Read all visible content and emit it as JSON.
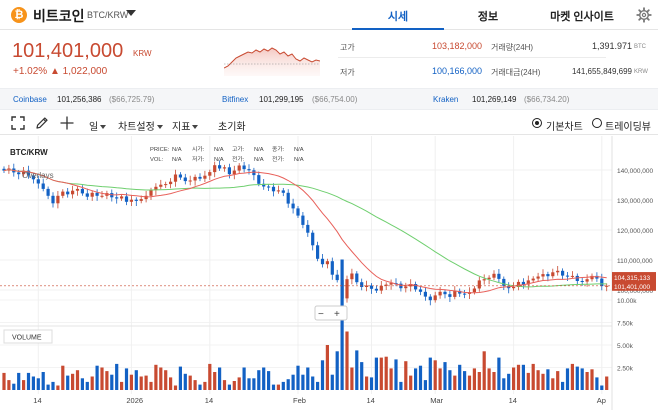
{
  "coin": {
    "icon": "bitcoin-icon",
    "symbol": "₿",
    "name": "비트코인",
    "pair": "BTC/KRW"
  },
  "tabs": [
    {
      "label": "시세",
      "active": true
    },
    {
      "label": "정보",
      "active": false
    },
    {
      "label": "마켓 인사이트",
      "active": false
    }
  ],
  "price": {
    "current": "101,401,000",
    "unit": "KRW",
    "change_pct": "+1.02%",
    "change_abs": "▲ 1,022,000"
  },
  "stats": {
    "high_label": "고가",
    "high": "103,182,000",
    "low_label": "저가",
    "low": "100,166,000",
    "volume_label": "거래량(24H)",
    "volume": "1,391.971",
    "volume_unit": "BTC",
    "value_label": "거래대금(24H)",
    "value": "141,655,849,699",
    "value_unit": "KRW"
  },
  "exchanges": [
    {
      "name": "Coinbase",
      "price": "101,256,386",
      "usd": "($66,725.79)"
    },
    {
      "name": "Bitfinex",
      "price": "101,299,195",
      "usd": "($66,754.00)"
    },
    {
      "name": "Kraken",
      "price": "101,269,149",
      "usd": "($66,734.20)"
    }
  ],
  "toolbar": {
    "interval": "일",
    "settings": "차트설정",
    "indicator": "지표",
    "reset": "초기화",
    "basic_chart": "기본차트",
    "tradingview": "트레이딩뷰",
    "basic_selected": true
  },
  "colors": {
    "up": "#c84a31",
    "down": "#1261c4",
    "ma_short": "#e8605a",
    "ma_long": "#6fcf6f",
    "accent": "#1261c4"
  },
  "chart_data": {
    "type": "candlestick",
    "symbol_label": "BTC/KRW",
    "overlays_label": "Overlays",
    "ohlc_labels": [
      "PRICE:",
      "시가:",
      "고가:",
      "종가:",
      "VOL:",
      "저가:",
      "전가:",
      "전가:"
    ],
    "ohlc_values": [
      "N/A",
      "N/A",
      "N/A",
      "N/A",
      "N/A",
      "N/A",
      "N/A",
      "N/A"
    ],
    "volume_label": "VOLUME",
    "y_ticks": [
      {
        "value": 140000000,
        "label": "140,000,000"
      },
      {
        "value": 130000000,
        "label": "130,000,000"
      },
      {
        "value": 120000000,
        "label": "120,000,000"
      },
      {
        "value": 110000000,
        "label": "110,000,000"
      },
      {
        "value": 100000000,
        "label": "100,000,000"
      }
    ],
    "price_tags": [
      {
        "value": 104315133,
        "label": "104,315,133",
        "color": "#c84a31"
      },
      {
        "value": 101401000,
        "label": "101,401,000",
        "color": "#c84a31"
      }
    ],
    "vol_ticks": [
      {
        "value": 10000,
        "label": "10.00k"
      },
      {
        "value": 7500,
        "label": "7.50k"
      },
      {
        "value": 5000,
        "label": "5.00k"
      },
      {
        "value": 2500,
        "label": "2.50k"
      }
    ],
    "x_ticks": [
      "14",
      "2026",
      "14",
      "Feb",
      "14",
      "Mar",
      "14",
      "Ap"
    ],
    "close_series": [
      139.8,
      140.5,
      139.2,
      138.6,
      139.8,
      138.2,
      136.9,
      135.5,
      133.7,
      131.4,
      128.9,
      131.4,
      132.8,
      131.9,
      133.1,
      133.7,
      132.2,
      131.1,
      132.4,
      131.4,
      131.4,
      132.3,
      130.9,
      130.5,
      131.2,
      129.4,
      130.1,
      129.7,
      130.3,
      131.4,
      133.3,
      134.4,
      135.1,
      135.3,
      136.1,
      138.5,
      137.5,
      136.3,
      136.5,
      137.7,
      137.1,
      138.1,
      139.3,
      141.6,
      140.5,
      140.9,
      138.6,
      139.8,
      141.5,
      140.3,
      139.9,
      138.3,
      135.4,
      134.5,
      134.4,
      132.9,
      133.2,
      132.4,
      128.8,
      127.2,
      124.8,
      121.7,
      119.1,
      114.9,
      110.4,
      108.6,
      109.6,
      105.1,
      103.3,
      97.2,
      103.6,
      105.5,
      102.6,
      101.0,
      101.5,
      100.4,
      99.8,
      101.4,
      101.8,
      102.3,
      102.1,
      100.6,
      101.2,
      102.0,
      100.2,
      99.4,
      97.8,
      96.6,
      98.2,
      99.4,
      98.6,
      97.7,
      99.7,
      98.8,
      98.7,
      99.3,
      100.5,
      103.2,
      103.6,
      104.1,
      105.4,
      103.7,
      101.4,
      100.6,
      101.0,
      102.7,
      101.8,
      103.2,
      103.8,
      104.5,
      105.3,
      104.6,
      105.9,
      106.4,
      104.8,
      104.7,
      104.7,
      103.0,
      102.8,
      103.6,
      104.7,
      103.8,
      101.3,
      101.4
    ],
    "volume_series": [
      1.9,
      1.1,
      0.7,
      1.9,
      1.1,
      1.9,
      1.5,
      1.3,
      2.0,
      0.6,
      0.9,
      0.5,
      2.7,
      1.6,
      1.8,
      2.2,
      1.3,
      0.9,
      1.5,
      2.7,
      2.5,
      2.1,
      1.7,
      2.9,
      0.9,
      2.4,
      1.7,
      2.2,
      1.5,
      1.6,
      0.9,
      2.8,
      2.5,
      2.2,
      1.4,
      0.5,
      2.6,
      1.8,
      1.6,
      1.1,
      0.6,
      0.9,
      2.9,
      2.0,
      2.5,
      1.1,
      0.6,
      1.0,
      1.4,
      2.5,
      1.3,
      1.3,
      2.2,
      2.5,
      2.1,
      0.6,
      0.6,
      0.9,
      1.2,
      1.7,
      2.7,
      1.7,
      2.5,
      1.5,
      0.9,
      3.3,
      5.0,
      1.7,
      4.3,
      14.5,
      6.5,
      2.5,
      4.4,
      3.1,
      1.5,
      1.4,
      3.6,
      3.6,
      3.7,
      2.4,
      3.4,
      0.9,
      3.2,
      1.6,
      2.4,
      2.7,
      1.1,
      3.6,
      3.3,
      2.4,
      3.1,
      2.2,
      1.6,
      2.8,
      2.1,
      1.6,
      2.4,
      2.0,
      4.3,
      2.4,
      2.0,
      3.6,
      1.3,
      1.8,
      2.5,
      2.8,
      2.8,
      1.9,
      2.9,
      2.2,
      1.8,
      2.3,
      1.3,
      2.1,
      0.9,
      2.4,
      2.9,
      2.6,
      2.4,
      2.0,
      2.3,
      1.4,
      0.5,
      1.5
    ]
  }
}
